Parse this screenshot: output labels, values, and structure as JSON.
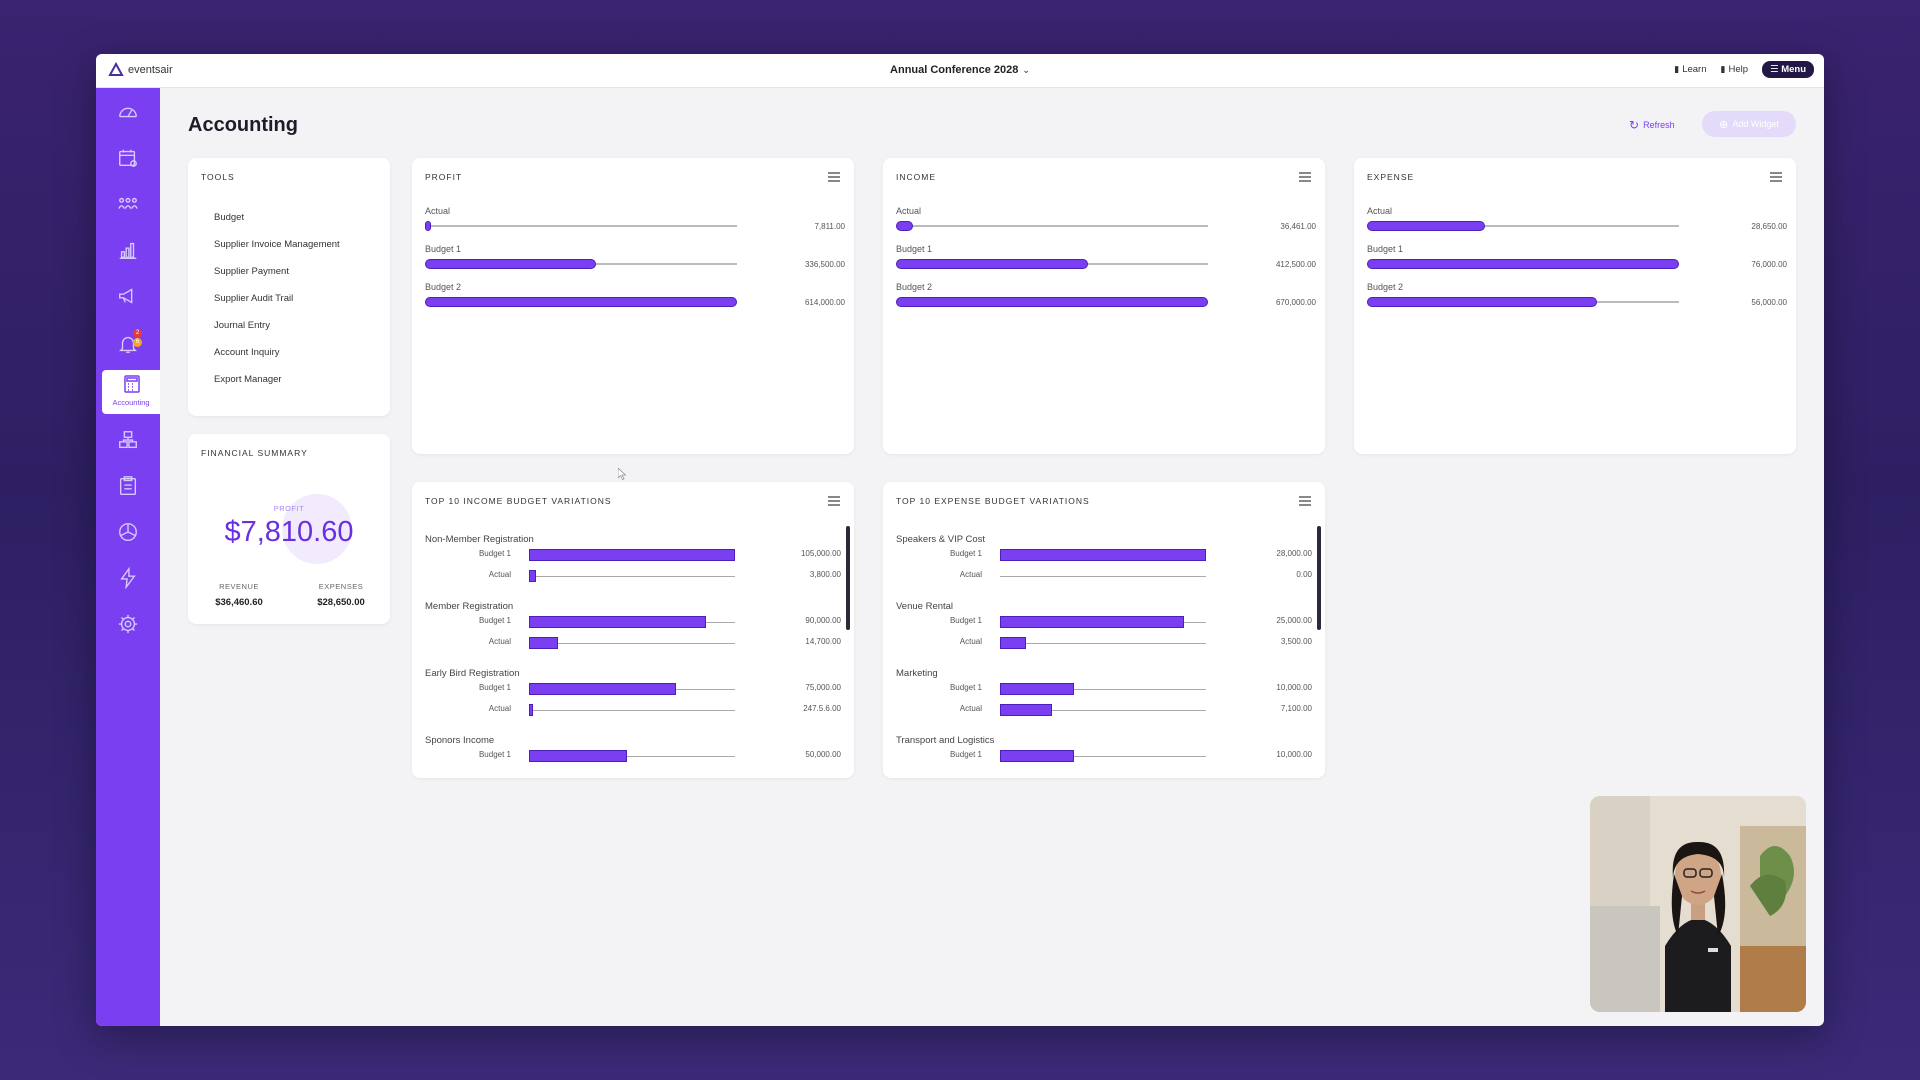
{
  "app": {
    "logo_text": "eventsair",
    "event_title": "Annual Conference 2028",
    "top_links": {
      "learn": "Learn",
      "help": "Help",
      "menu": "Menu"
    },
    "accent_color": "#7b3ff2"
  },
  "sidebar": {
    "icons": [
      "dashboard-icon",
      "calendar-icon",
      "attendees-icon",
      "reports-icon",
      "marketing-icon",
      "notifications-icon",
      "accounting-icon",
      "venues-icon",
      "forms-icon",
      "integrations-icon",
      "automation-icon",
      "settings-icon"
    ],
    "active_label": "Accounting",
    "notification_badges": [
      "2",
      "6"
    ]
  },
  "page": {
    "title": "Accounting",
    "refresh_label": "Refresh",
    "add_widget_label": "Add Widget"
  },
  "tools": {
    "title": "TOOLS",
    "items": [
      "Budget",
      "Supplier Invoice Management",
      "Supplier Payment",
      "Supplier Audit Trail",
      "Journal Entry",
      "Account Inquiry",
      "Export Manager"
    ]
  },
  "financial_summary": {
    "title": "FINANCIAL SUMMARY",
    "profit_label": "PROFIT",
    "profit_value": "$7,810.60",
    "revenue_label": "REVENUE",
    "revenue_value": "$36,460.60",
    "expenses_label": "EXPENSES",
    "expenses_value": "$28,650.00"
  },
  "profit": {
    "title": "PROFIT",
    "rows": [
      {
        "label": "Actual",
        "value": "7,811.00",
        "fraction": 0.013
      },
      {
        "label": "Budget 1",
        "value": "336,500.00",
        "fraction": 0.548
      },
      {
        "label": "Budget 2",
        "value": "614,000.00",
        "fraction": 1.0
      }
    ]
  },
  "income": {
    "title": "INCOME",
    "rows": [
      {
        "label": "Actual",
        "value": "36,461.00",
        "fraction": 0.054
      },
      {
        "label": "Budget 1",
        "value": "412,500.00",
        "fraction": 0.616
      },
      {
        "label": "Budget 2",
        "value": "670,000.00",
        "fraction": 1.0
      }
    ]
  },
  "expense": {
    "title": "EXPENSE",
    "rows": [
      {
        "label": "Actual",
        "value": "28,650.00",
        "fraction": 0.377
      },
      {
        "label": "Budget 1",
        "value": "76,000.00",
        "fraction": 1.0
      },
      {
        "label": "Budget 2",
        "value": "56,000.00",
        "fraction": 0.737
      }
    ]
  },
  "income_variations": {
    "title": "TOP 10 INCOME BUDGET VARIATIONS",
    "groups": [
      {
        "name": "Non-Member Registration",
        "lines": [
          {
            "label": "Budget 1",
            "value": "105,000.00",
            "fraction": 1.0
          },
          {
            "label": "Actual",
            "value": "3,800.00",
            "fraction": 0.036
          }
        ]
      },
      {
        "name": "Member Registration",
        "lines": [
          {
            "label": "Budget 1",
            "value": "90,000.00",
            "fraction": 0.857
          },
          {
            "label": "Actual",
            "value": "14,700.00",
            "fraction": 0.14
          }
        ]
      },
      {
        "name": "Early Bird Registration",
        "lines": [
          {
            "label": "Budget 1",
            "value": "75,000.00",
            "fraction": 0.714
          },
          {
            "label": "Actual",
            "value": "247.5.6.00",
            "fraction": 0.02
          }
        ]
      },
      {
        "name": "Sponors Income",
        "lines": [
          {
            "label": "Budget 1",
            "value": "50,000.00",
            "fraction": 0.476
          }
        ]
      }
    ]
  },
  "expense_variations": {
    "title": "TOP 10 EXPENSE BUDGET VARIATIONS",
    "groups": [
      {
        "name": "Speakers & VIP Cost",
        "lines": [
          {
            "label": "Budget 1",
            "value": "28,000.00",
            "fraction": 1.0
          },
          {
            "label": "Actual",
            "value": "0.00",
            "fraction": 0.0
          }
        ]
      },
      {
        "name": "Venue Rental",
        "lines": [
          {
            "label": "Budget 1",
            "value": "25,000.00",
            "fraction": 0.893
          },
          {
            "label": "Actual",
            "value": "3,500.00",
            "fraction": 0.125
          }
        ]
      },
      {
        "name": "Marketing",
        "lines": [
          {
            "label": "Budget 1",
            "value": "10,000.00",
            "fraction": 0.357
          },
          {
            "label": "Actual",
            "value": "7,100.00",
            "fraction": 0.254
          }
        ]
      },
      {
        "name": "Transport and Logistics",
        "lines": [
          {
            "label": "Budget 1",
            "value": "10,000.00",
            "fraction": 0.357
          }
        ]
      }
    ]
  }
}
